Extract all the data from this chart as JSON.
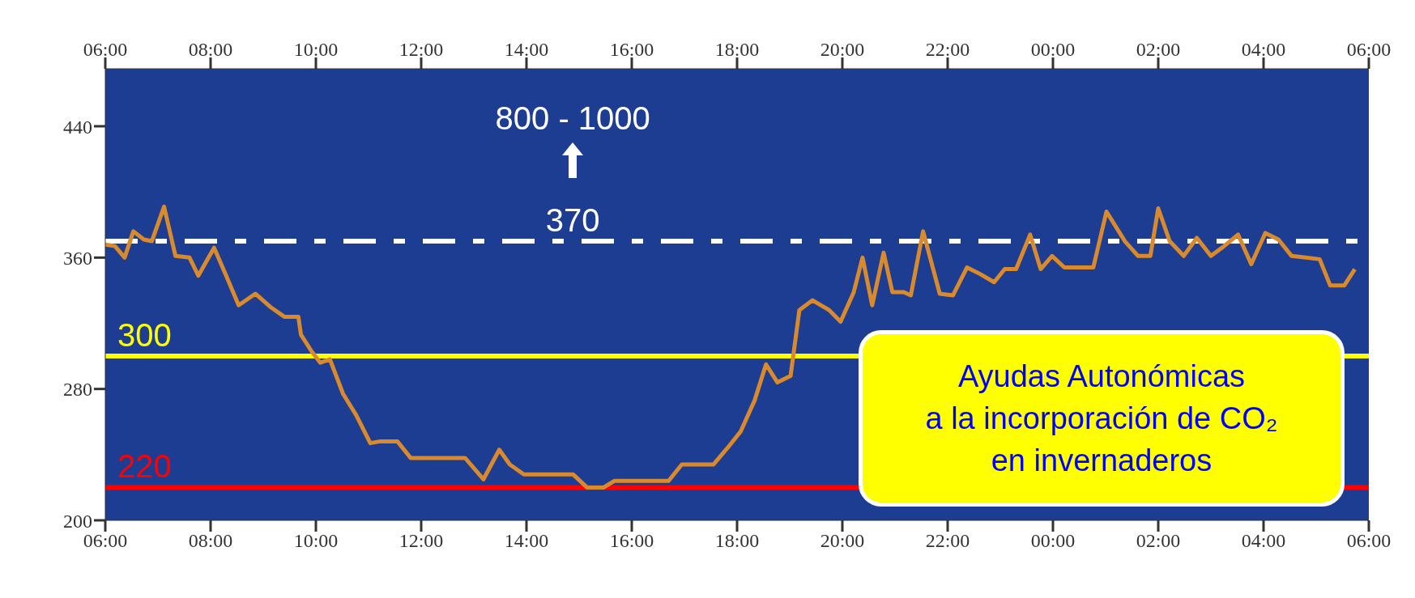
{
  "chart_data": {
    "type": "line",
    "annotations": [
      "800 - 1000",
      "Ayudas Autonómicas\na la incorporación de CO₂\nen invernaderos"
    ],
    "x": [
      "--01-01T06:00",
      "--01-01T06:11",
      "--01-01T06:22",
      "--01-01T06:32",
      "--01-01T06:44",
      "--01-01T06:53",
      "--01-01T07:07",
      "--01-01T07:20",
      "--01-01T07:36",
      "--01-01T07:46",
      "--01-01T08:04",
      "--01-01T08:17",
      "--01-01T08:32",
      "--01-01T08:51",
      "--01-01T09:08",
      "--01-01T09:24",
      "--01-01T09:40",
      "--01-01T09:43",
      "--01-01T09:55",
      "--01-01T10:05",
      "--01-01T10:16",
      "--01-01T10:31",
      "--01-01T10:46",
      "--01-01T11:02",
      "--01-01T11:12",
      "--01-01T11:33",
      "--01-01T11:48",
      "--01-01T12:04",
      "--01-01T12:19",
      "--01-01T12:35",
      "--01-01T12:50",
      "--01-01T13:11",
      "--01-01T13:29",
      "--01-01T13:41",
      "--01-01T13:57",
      "--01-01T14:17",
      "--01-01T14:38",
      "--01-01T14:53",
      "--01-01T15:09",
      "--01-01T15:28",
      "--01-01T15:40",
      "--01-01T16:01",
      "--01-01T16:21",
      "--01-01T16:42",
      "--01-01T16:57",
      "--01-01T17:18",
      "--01-01T17:33",
      "--01-01T17:49",
      "--01-01T18:04",
      "--01-01T18:20",
      "--01-01T18:33",
      "--01-01T18:46",
      "--01-01T19:01",
      "--01-01T19:11",
      "--01-01T19:26",
      "--01-01T19:45",
      "--01-01T19:58",
      "--01-01T20:13",
      "--01-01T20:23",
      "--01-01T20:34",
      "--01-01T20:47",
      "--01-01T20:57",
      "--01-01T21:10",
      "--01-01T21:18",
      "--01-01T21:32",
      "--01-01T21:51",
      "--01-01T22:06",
      "--01-01T22:22",
      "--01-01T22:37",
      "--01-01T22:53",
      "--01-01T23:05",
      "--01-01T23:18",
      "--01-01T23:34",
      "--01-01T23:46",
      "--01-01T23:59",
      "--01-02T00:13",
      "--01-02T00:31",
      "--01-02T00:46",
      "--01-02T01:01",
      "--01-02T01:22",
      "--01-02T01:37",
      "--01-02T01:51",
      "--01-02T02:00",
      "--01-02T02:13",
      "--01-02T02:29",
      "--01-02T02:44",
      "--01-02T03:00",
      "--01-02T03:15",
      "--01-02T03:31",
      "--01-02T03:46",
      "--01-02T04:02",
      "--01-02T04:17",
      "--01-02T04:32",
      "--01-02T04:48",
      "--01-02T05:04",
      "--01-02T05:16",
      "--01-02T05:32",
      "--01-02T05:44"
    ],
    "series": [
      {
        "color": "#d98a2c",
        "values": [
          368,
          367,
          360,
          376,
          371,
          370,
          391,
          361,
          360,
          349,
          366,
          350,
          331,
          338,
          330,
          324,
          324,
          313,
          303,
          296,
          298,
          277,
          264,
          247,
          248,
          248,
          238,
          238,
          238,
          238,
          238,
          225,
          243,
          234,
          228,
          228,
          228,
          228,
          220,
          220,
          224,
          224,
          224,
          224,
          234,
          234,
          234,
          244,
          254,
          273,
          295,
          284,
          288,
          328,
          334,
          328,
          321,
          339,
          360,
          331,
          363,
          339,
          339,
          337,
          376,
          338,
          337,
          354,
          350,
          345,
          353,
          353,
          374,
          353,
          361,
          354,
          354,
          354,
          388,
          370,
          361,
          361,
          390,
          370,
          361,
          372,
          361,
          367,
          374,
          356,
          375,
          371,
          361,
          360,
          359,
          343,
          343,
          353
        ]
      }
    ],
    "xlim": [
      "--01-01T06:00",
      "--01-02T06:00"
    ],
    "xticks": [
      {
        "value": "--01-01T06:00",
        "label": "06:00"
      },
      {
        "value": "--01-01T08:00",
        "label": "08:00"
      },
      {
        "value": "--01-01T10:00",
        "label": "10:00"
      },
      {
        "value": "--01-01T12:00",
        "label": "12:00"
      },
      {
        "value": "--01-01T14:00",
        "label": "14:00"
      },
      {
        "value": "--01-01T16:00",
        "label": "16:00"
      },
      {
        "value": "--01-01T18:00",
        "label": "18:00"
      },
      {
        "value": "--01-01T20:00",
        "label": "20:00"
      },
      {
        "value": "--01-01T22:00",
        "label": "22:00"
      },
      {
        "value": "--01-02T00:00",
        "label": "00:00"
      },
      {
        "value": "--01-02T02:00",
        "label": "02:00"
      },
      {
        "value": "--01-02T04:00",
        "label": "04:00"
      },
      {
        "value": "--01-02T06:00",
        "label": "06:00"
      }
    ],
    "x2lim": [
      "--01-01T06:00",
      "--01-02T06:00"
    ],
    "x2ticks": [
      {
        "value": "--01-01T06:00",
        "label": "06:00"
      },
      {
        "value": "--01-01T08:00",
        "label": "08:00"
      },
      {
        "value": "--01-01T10:00",
        "label": "10:00"
      },
      {
        "value": "--01-01T12:00",
        "label": "12:00"
      },
      {
        "value": "--01-01T14:00",
        "label": "14:00"
      },
      {
        "value": "--01-01T16:00",
        "label": "16:00"
      },
      {
        "value": "--01-01T18:00",
        "label": "18:00"
      },
      {
        "value": "--01-01T20:00",
        "label": "20:00"
      },
      {
        "value": "--01-01T22:00",
        "label": "22:00"
      },
      {
        "value": "--01-02T00:00",
        "label": "00:00"
      },
      {
        "value": "--01-02T02:00",
        "label": "02:00"
      },
      {
        "value": "--01-02T04:00",
        "label": "04:00"
      },
      {
        "value": "--01-02T06:00",
        "label": "06:00"
      }
    ],
    "ylim": [
      200,
      475
    ],
    "yticks": [
      200,
      280,
      360,
      440
    ],
    "ref_lines": [
      {
        "axis": "y",
        "value": 370,
        "label": "370",
        "color": "#ffffff",
        "line_style": "dashed"
      },
      {
        "axis": "y",
        "value": 300,
        "label": "300",
        "color": "#ffff00",
        "line_style": "solid"
      },
      {
        "axis": "y",
        "value": 220,
        "label": "220",
        "color": "#ff0000",
        "line_style": "solid"
      }
    ],
    "grid": false,
    "legend": false,
    "marker": "none",
    "line_style": "solid"
  }
}
